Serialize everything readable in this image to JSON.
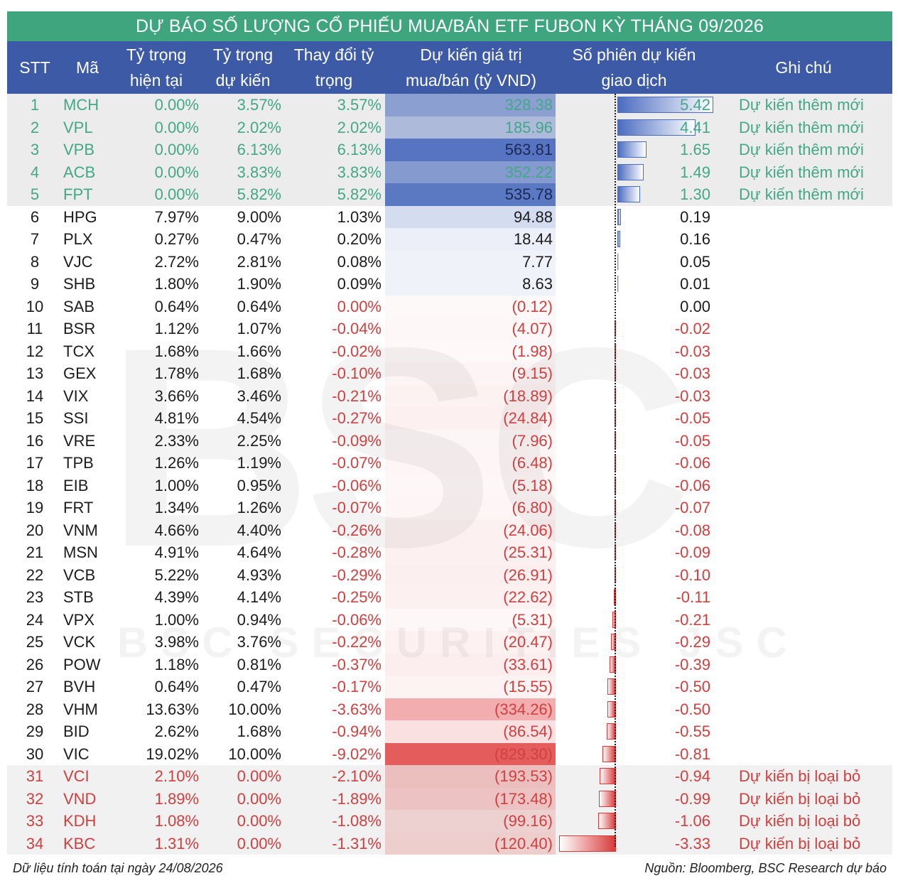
{
  "title": "DỰ BÁO SỐ LƯỢNG CỔ PHIẾU MUA/BÁN ETF FUBON KỲ THÁNG 09/2026",
  "headers": {
    "stt": "STT",
    "ma": "Mã",
    "cur_1": "Tỷ trọng",
    "cur_2": "hiện tại",
    "exp_1": "Tỷ trọng",
    "exp_2": "dự kiến",
    "chg_1": "Thay đổi tỷ",
    "chg_2": "trọng",
    "val_1": "Dự kiến giá trị",
    "val_2": "mua/bán (tỷ VND)",
    "ses_1": "Số phiên dự kiến",
    "ses_2": "giao dịch",
    "note": "Ghi chú"
  },
  "colors": {
    "title_bg": "#3fa57f",
    "header_bg": "#3c5aa5",
    "added_text": "#43a887",
    "removed_text": "#d04040",
    "buy_bar": "#5575c0",
    "sell_bar": "#e05555"
  },
  "rows": [
    {
      "stt": "1",
      "ma": "MCH",
      "cur": "0.00%",
      "exp": "3.57%",
      "chg": "3.57%",
      "val": "328.38",
      "value": 328.38,
      "ses": "5.42",
      "sessions": 5.42,
      "note": "Dự kiến thêm mới",
      "group": "added"
    },
    {
      "stt": "2",
      "ma": "VPL",
      "cur": "0.00%",
      "exp": "2.02%",
      "chg": "2.02%",
      "val": "185.96",
      "value": 185.96,
      "ses": "4.41",
      "sessions": 4.41,
      "note": "Dự kiến thêm mới",
      "group": "added"
    },
    {
      "stt": "3",
      "ma": "VPB",
      "cur": "0.00%",
      "exp": "6.13%",
      "chg": "6.13%",
      "val": "563.81",
      "value": 563.81,
      "ses": "1.65",
      "sessions": 1.65,
      "note": "Dự kiến thêm mới",
      "group": "added"
    },
    {
      "stt": "4",
      "ma": "ACB",
      "cur": "0.00%",
      "exp": "3.83%",
      "chg": "3.83%",
      "val": "352.22",
      "value": 352.22,
      "ses": "1.49",
      "sessions": 1.49,
      "note": "Dự kiến thêm mới",
      "group": "added"
    },
    {
      "stt": "5",
      "ma": "FPT",
      "cur": "0.00%",
      "exp": "5.82%",
      "chg": "5.82%",
      "val": "535.78",
      "value": 535.78,
      "ses": "1.30",
      "sessions": 1.3,
      "note": "Dự kiến thêm mới",
      "group": "added"
    },
    {
      "stt": "6",
      "ma": "HPG",
      "cur": "7.97%",
      "exp": "9.00%",
      "chg": "1.03%",
      "val": "94.88",
      "value": 94.88,
      "ses": "0.19",
      "sessions": 0.19,
      "note": "",
      "group": "normal"
    },
    {
      "stt": "7",
      "ma": "PLX",
      "cur": "0.27%",
      "exp": "0.47%",
      "chg": "0.20%",
      "val": "18.44",
      "value": 18.44,
      "ses": "0.16",
      "sessions": 0.16,
      "note": "",
      "group": "normal"
    },
    {
      "stt": "8",
      "ma": "VJC",
      "cur": "2.72%",
      "exp": "2.81%",
      "chg": "0.08%",
      "val": "7.77",
      "value": 7.77,
      "ses": "0.05",
      "sessions": 0.05,
      "note": "",
      "group": "normal"
    },
    {
      "stt": "9",
      "ma": "SHB",
      "cur": "1.80%",
      "exp": "1.90%",
      "chg": "0.09%",
      "val": "8.63",
      "value": 8.63,
      "ses": "0.01",
      "sessions": 0.01,
      "note": "",
      "group": "normal"
    },
    {
      "stt": "10",
      "ma": "SAB",
      "cur": "0.64%",
      "exp": "0.64%",
      "chg": "0.00%",
      "val": "(0.12)",
      "value": -0.12,
      "ses": "0.00",
      "sessions": 0.0,
      "note": "",
      "group": "normal"
    },
    {
      "stt": "11",
      "ma": "BSR",
      "cur": "1.12%",
      "exp": "1.07%",
      "chg": "-0.04%",
      "val": "(4.07)",
      "value": -4.07,
      "ses": "-0.02",
      "sessions": -0.02,
      "note": "",
      "group": "normal"
    },
    {
      "stt": "12",
      "ma": "TCX",
      "cur": "1.68%",
      "exp": "1.66%",
      "chg": "-0.02%",
      "val": "(1.98)",
      "value": -1.98,
      "ses": "-0.03",
      "sessions": -0.03,
      "note": "",
      "group": "normal"
    },
    {
      "stt": "13",
      "ma": "GEX",
      "cur": "1.78%",
      "exp": "1.68%",
      "chg": "-0.10%",
      "val": "(9.15)",
      "value": -9.15,
      "ses": "-0.03",
      "sessions": -0.03,
      "note": "",
      "group": "normal"
    },
    {
      "stt": "14",
      "ma": "VIX",
      "cur": "3.66%",
      "exp": "3.46%",
      "chg": "-0.21%",
      "val": "(18.89)",
      "value": -18.89,
      "ses": "-0.03",
      "sessions": -0.03,
      "note": "",
      "group": "normal"
    },
    {
      "stt": "15",
      "ma": "SSI",
      "cur": "4.81%",
      "exp": "4.54%",
      "chg": "-0.27%",
      "val": "(24.84)",
      "value": -24.84,
      "ses": "-0.05",
      "sessions": -0.05,
      "note": "",
      "group": "normal"
    },
    {
      "stt": "16",
      "ma": "VRE",
      "cur": "2.33%",
      "exp": "2.25%",
      "chg": "-0.09%",
      "val": "(7.96)",
      "value": -7.96,
      "ses": "-0.05",
      "sessions": -0.05,
      "note": "",
      "group": "normal"
    },
    {
      "stt": "17",
      "ma": "TPB",
      "cur": "1.26%",
      "exp": "1.19%",
      "chg": "-0.07%",
      "val": "(6.48)",
      "value": -6.48,
      "ses": "-0.06",
      "sessions": -0.06,
      "note": "",
      "group": "normal"
    },
    {
      "stt": "18",
      "ma": "EIB",
      "cur": "1.00%",
      "exp": "0.95%",
      "chg": "-0.06%",
      "val": "(5.18)",
      "value": -5.18,
      "ses": "-0.06",
      "sessions": -0.06,
      "note": "",
      "group": "normal"
    },
    {
      "stt": "19",
      "ma": "FRT",
      "cur": "1.34%",
      "exp": "1.26%",
      "chg": "-0.07%",
      "val": "(6.80)",
      "value": -6.8,
      "ses": "-0.07",
      "sessions": -0.07,
      "note": "",
      "group": "normal"
    },
    {
      "stt": "20",
      "ma": "VNM",
      "cur": "4.66%",
      "exp": "4.40%",
      "chg": "-0.26%",
      "val": "(24.06)",
      "value": -24.06,
      "ses": "-0.08",
      "sessions": -0.08,
      "note": "",
      "group": "normal"
    },
    {
      "stt": "21",
      "ma": "MSN",
      "cur": "4.91%",
      "exp": "4.64%",
      "chg": "-0.28%",
      "val": "(25.31)",
      "value": -25.31,
      "ses": "-0.09",
      "sessions": -0.09,
      "note": "",
      "group": "normal"
    },
    {
      "stt": "22",
      "ma": "VCB",
      "cur": "5.22%",
      "exp": "4.93%",
      "chg": "-0.29%",
      "val": "(26.91)",
      "value": -26.91,
      "ses": "-0.10",
      "sessions": -0.1,
      "note": "",
      "group": "normal"
    },
    {
      "stt": "23",
      "ma": "STB",
      "cur": "4.39%",
      "exp": "4.14%",
      "chg": "-0.25%",
      "val": "(22.62)",
      "value": -22.62,
      "ses": "-0.11",
      "sessions": -0.11,
      "note": "",
      "group": "normal"
    },
    {
      "stt": "24",
      "ma": "VPX",
      "cur": "1.00%",
      "exp": "0.94%",
      "chg": "-0.06%",
      "val": "(5.31)",
      "value": -5.31,
      "ses": "-0.21",
      "sessions": -0.21,
      "note": "",
      "group": "normal"
    },
    {
      "stt": "25",
      "ma": "VCK",
      "cur": "3.98%",
      "exp": "3.76%",
      "chg": "-0.22%",
      "val": "(20.47)",
      "value": -20.47,
      "ses": "-0.29",
      "sessions": -0.29,
      "note": "",
      "group": "normal"
    },
    {
      "stt": "26",
      "ma": "POW",
      "cur": "1.18%",
      "exp": "0.81%",
      "chg": "-0.37%",
      "val": "(33.61)",
      "value": -33.61,
      "ses": "-0.39",
      "sessions": -0.39,
      "note": "",
      "group": "normal"
    },
    {
      "stt": "27",
      "ma": "BVH",
      "cur": "0.64%",
      "exp": "0.47%",
      "chg": "-0.17%",
      "val": "(15.55)",
      "value": -15.55,
      "ses": "-0.50",
      "sessions": -0.5,
      "note": "",
      "group": "normal"
    },
    {
      "stt": "28",
      "ma": "VHM",
      "cur": "13.63%",
      "exp": "10.00%",
      "chg": "-3.63%",
      "val": "(334.26)",
      "value": -334.26,
      "ses": "-0.50",
      "sessions": -0.5,
      "note": "",
      "group": "normal"
    },
    {
      "stt": "29",
      "ma": "BID",
      "cur": "2.62%",
      "exp": "1.68%",
      "chg": "-0.94%",
      "val": "(86.54)",
      "value": -86.54,
      "ses": "-0.55",
      "sessions": -0.55,
      "note": "",
      "group": "normal"
    },
    {
      "stt": "30",
      "ma": "VIC",
      "cur": "19.02%",
      "exp": "10.00%",
      "chg": "-9.02%",
      "val": "(829.30)",
      "value": -829.3,
      "ses": "-0.81",
      "sessions": -0.81,
      "note": "",
      "group": "normal"
    },
    {
      "stt": "31",
      "ma": "VCI",
      "cur": "2.10%",
      "exp": "0.00%",
      "chg": "-2.10%",
      "val": "(193.53)",
      "value": -193.53,
      "ses": "-0.94",
      "sessions": -0.94,
      "note": "Dự kiến bị loại bỏ",
      "group": "removed"
    },
    {
      "stt": "32",
      "ma": "VND",
      "cur": "1.89%",
      "exp": "0.00%",
      "chg": "-1.89%",
      "val": "(173.48)",
      "value": -173.48,
      "ses": "-0.99",
      "sessions": -0.99,
      "note": "Dự kiến bị loại bỏ",
      "group": "removed"
    },
    {
      "stt": "33",
      "ma": "KDH",
      "cur": "1.08%",
      "exp": "0.00%",
      "chg": "-1.08%",
      "val": "(99.16)",
      "value": -99.16,
      "ses": "-1.06",
      "sessions": -1.06,
      "note": "Dự kiến bị loại bỏ",
      "group": "removed"
    },
    {
      "stt": "34",
      "ma": "KBC",
      "cur": "1.31%",
      "exp": "0.00%",
      "chg": "-1.31%",
      "val": "(120.40)",
      "value": -120.4,
      "ses": "-3.33",
      "sessions": -3.33,
      "note": "Dự kiến bị loại bỏ",
      "group": "removed"
    }
  ],
  "watermark": {
    "logo": "BSC",
    "text": "BSC SECURITIES JSC"
  },
  "footer": {
    "left": "Dữ liệu tính toán tại ngày 24/08/2026",
    "right": "Nguồn: Bloomberg, BSC Research dự báo"
  }
}
